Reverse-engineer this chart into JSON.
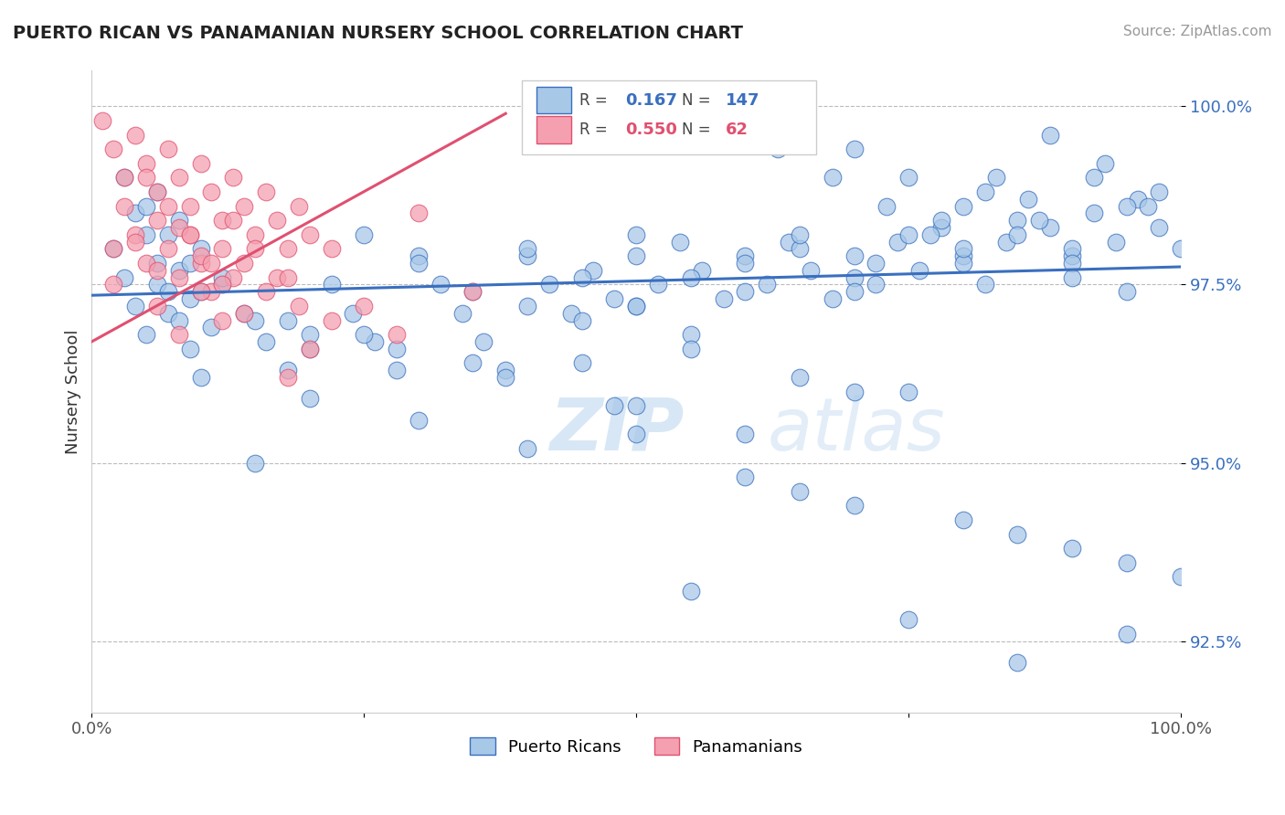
{
  "title": "PUERTO RICAN VS PANAMANIAN NURSERY SCHOOL CORRELATION CHART",
  "source_text": "Source: ZipAtlas.com",
  "ylabel": "Nursery School",
  "xlim": [
    0.0,
    1.0
  ],
  "ylim": [
    0.915,
    1.005
  ],
  "yticks": [
    0.925,
    0.95,
    0.975,
    1.0
  ],
  "ytick_labels": [
    "92.5%",
    "95.0%",
    "97.5%",
    "100.0%"
  ],
  "xticks": [
    0.0,
    0.25,
    0.5,
    0.75,
    1.0
  ],
  "xtick_labels": [
    "0.0%",
    "",
    "",
    "",
    "100.0%"
  ],
  "legend_blue_r": "0.167",
  "legend_blue_n": "147",
  "legend_pink_r": "0.550",
  "legend_pink_n": "62",
  "blue_color": "#a8c8e8",
  "blue_line_color": "#3a6fbf",
  "pink_color": "#f4a0b0",
  "pink_line_color": "#e05070",
  "watermark_zip": "ZIP",
  "watermark_atlas": "atlas",
  "blue_trend_x": [
    0.0,
    1.0
  ],
  "blue_trend_y": [
    0.9735,
    0.9775
  ],
  "pink_trend_x": [
    0.0,
    0.38
  ],
  "pink_trend_y": [
    0.967,
    0.999
  ],
  "blue_scatter_x": [
    0.02,
    0.03,
    0.04,
    0.05,
    0.06,
    0.07,
    0.08,
    0.09,
    0.1,
    0.11,
    0.04,
    0.05,
    0.06,
    0.07,
    0.08,
    0.09,
    0.1,
    0.12,
    0.14,
    0.16,
    0.18,
    0.2,
    0.22,
    0.24,
    0.26,
    0.28,
    0.3,
    0.32,
    0.34,
    0.36,
    0.38,
    0.4,
    0.42,
    0.44,
    0.46,
    0.48,
    0.5,
    0.52,
    0.54,
    0.56,
    0.58,
    0.6,
    0.62,
    0.64,
    0.66,
    0.68,
    0.7,
    0.72,
    0.74,
    0.76,
    0.78,
    0.8,
    0.82,
    0.84,
    0.86,
    0.88,
    0.9,
    0.92,
    0.94,
    0.96,
    0.98,
    0.15,
    0.2,
    0.25,
    0.3,
    0.35,
    0.4,
    0.45,
    0.5,
    0.55,
    0.6,
    0.65,
    0.7,
    0.75,
    0.8,
    0.85,
    0.9,
    0.95,
    0.03,
    0.05,
    0.07,
    0.09,
    0.06,
    0.08,
    0.1,
    0.12,
    0.6,
    0.7,
    0.75,
    0.8,
    0.85,
    0.9,
    0.95,
    1.0,
    0.55,
    0.65,
    0.72,
    0.78,
    0.83,
    0.88,
    0.93,
    0.98,
    0.63,
    0.68,
    0.73,
    0.77,
    0.82,
    0.87,
    0.92,
    0.97,
    0.5,
    0.6,
    0.7,
    0.8,
    0.9,
    0.4,
    0.5,
    0.6,
    0.7,
    0.3,
    0.4,
    0.5,
    0.2,
    0.35,
    0.45,
    0.55,
    0.65,
    0.25,
    0.45,
    0.75,
    0.95,
    0.85,
    0.15,
    0.65,
    0.55,
    0.75,
    0.85,
    0.95,
    0.8,
    0.9,
    1.0,
    0.7,
    0.6,
    0.5,
    0.48,
    0.38,
    0.28,
    0.18
  ],
  "blue_scatter_y": [
    0.98,
    0.976,
    0.972,
    0.968,
    0.975,
    0.971,
    0.977,
    0.973,
    0.974,
    0.969,
    0.985,
    0.982,
    0.978,
    0.974,
    0.97,
    0.966,
    0.962,
    0.975,
    0.971,
    0.967,
    0.963,
    0.959,
    0.975,
    0.971,
    0.967,
    0.963,
    0.979,
    0.975,
    0.971,
    0.967,
    0.963,
    0.979,
    0.975,
    0.971,
    0.977,
    0.973,
    0.979,
    0.975,
    0.981,
    0.977,
    0.973,
    0.979,
    0.975,
    0.981,
    0.977,
    0.973,
    0.979,
    0.975,
    0.981,
    0.977,
    0.983,
    0.979,
    0.975,
    0.981,
    0.987,
    0.983,
    0.979,
    0.985,
    0.981,
    0.987,
    0.983,
    0.97,
    0.966,
    0.982,
    0.978,
    0.974,
    0.98,
    0.976,
    0.972,
    0.968,
    0.974,
    0.98,
    0.976,
    0.982,
    0.978,
    0.984,
    0.98,
    0.986,
    0.99,
    0.986,
    0.982,
    0.978,
    0.988,
    0.984,
    0.98,
    0.976,
    0.998,
    0.994,
    0.99,
    0.986,
    0.982,
    0.978,
    0.974,
    0.98,
    0.976,
    0.982,
    0.978,
    0.984,
    0.99,
    0.996,
    0.992,
    0.988,
    0.994,
    0.99,
    0.986,
    0.982,
    0.988,
    0.984,
    0.99,
    0.986,
    0.982,
    0.978,
    0.974,
    0.98,
    0.976,
    0.972,
    0.958,
    0.954,
    0.96,
    0.956,
    0.952,
    0.972,
    0.968,
    0.964,
    0.97,
    0.966,
    0.962,
    0.968,
    0.964,
    0.96,
    0.926,
    0.922,
    0.95,
    0.946,
    0.932,
    0.928,
    0.94,
    0.936,
    0.942,
    0.938,
    0.934,
    0.944,
    0.948,
    0.954,
    0.958,
    0.962,
    0.966,
    0.97
  ],
  "pink_scatter_x": [
    0.01,
    0.02,
    0.03,
    0.04,
    0.05,
    0.06,
    0.07,
    0.08,
    0.09,
    0.1,
    0.11,
    0.12,
    0.13,
    0.14,
    0.15,
    0.16,
    0.17,
    0.18,
    0.19,
    0.2,
    0.02,
    0.03,
    0.04,
    0.05,
    0.06,
    0.07,
    0.08,
    0.09,
    0.1,
    0.11,
    0.12,
    0.13,
    0.02,
    0.04,
    0.06,
    0.08,
    0.1,
    0.12,
    0.14,
    0.05,
    0.07,
    0.09,
    0.11,
    0.13,
    0.15,
    0.17,
    0.19,
    0.3,
    0.08,
    0.1,
    0.06,
    0.14,
    0.16,
    0.22,
    0.18,
    0.12,
    0.2,
    0.25,
    0.28,
    0.35,
    0.18,
    0.22
  ],
  "pink_scatter_y": [
    0.998,
    0.994,
    0.99,
    0.996,
    0.992,
    0.988,
    0.994,
    0.99,
    0.986,
    0.992,
    0.988,
    0.984,
    0.99,
    0.986,
    0.982,
    0.988,
    0.984,
    0.98,
    0.986,
    0.982,
    0.98,
    0.986,
    0.982,
    0.978,
    0.984,
    0.98,
    0.976,
    0.982,
    0.978,
    0.974,
    0.98,
    0.976,
    0.975,
    0.981,
    0.977,
    0.983,
    0.979,
    0.975,
    0.971,
    0.99,
    0.986,
    0.982,
    0.978,
    0.984,
    0.98,
    0.976,
    0.972,
    0.985,
    0.968,
    0.974,
    0.972,
    0.978,
    0.974,
    0.98,
    0.976,
    0.97,
    0.966,
    0.972,
    0.968,
    0.974,
    0.962,
    0.97
  ]
}
